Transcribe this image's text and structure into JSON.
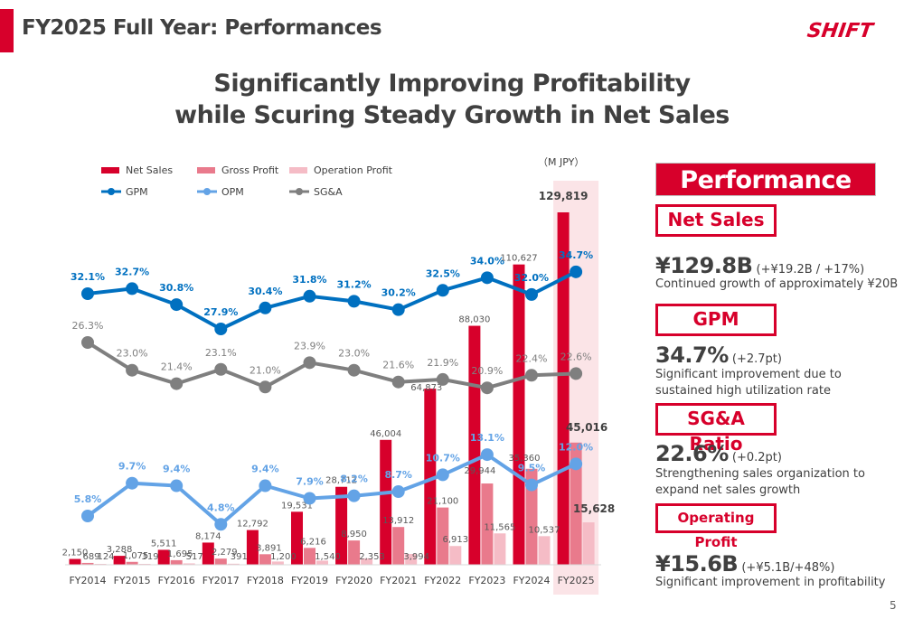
{
  "header": {
    "title": "FY2025 Full Year: Performances",
    "logo": "SHIFT",
    "accent_color": "#d7002b"
  },
  "headline": {
    "line1": "Significantly Improving Profitability",
    "line2": "while Scuring Steady Growth in Net Sales"
  },
  "chart_data": {
    "type": "bar",
    "unit_label": "（M JPY）",
    "categories": [
      "FY2014",
      "FY2015",
      "FY2016",
      "FY2017",
      "FY2018",
      "FY2019",
      "FY2020",
      "FY2021",
      "FY2022",
      "FY2023",
      "FY2024",
      "FY2025"
    ],
    "highlight_category": "FY2025",
    "legend": [
      {
        "name": "Net Sales",
        "type": "bar",
        "color": "#d7002b"
      },
      {
        "name": "Gross Profit",
        "type": "bar",
        "color": "#e97a8c"
      },
      {
        "name": "Operation Profit",
        "type": "bar",
        "color": "#f5bcc6"
      },
      {
        "name": "GPM",
        "type": "line",
        "color": "#0070c0"
      },
      {
        "name": "OPM",
        "type": "line",
        "color": "#63a3e6"
      },
      {
        "name": "SG&A",
        "type": "line",
        "color": "#7f7f7f"
      }
    ],
    "series": [
      {
        "name": "Net Sales",
        "type": "bar",
        "color": "#d7002b",
        "values": [
          2150,
          3288,
          5511,
          8174,
          12792,
          19531,
          28712,
          46004,
          64873,
          88030,
          110627,
          129819
        ],
        "labels": [
          "2,150",
          "3,288",
          "5,511",
          "8,174",
          "12,792",
          "19,531",
          "28,712",
          "46,004",
          "64,873",
          "88,030",
          "110,627",
          "129,819"
        ]
      },
      {
        "name": "Gross Profit",
        "type": "bar",
        "color": "#e97a8c",
        "values": [
          689,
          1075,
          1695,
          2279,
          3891,
          6216,
          8950,
          13912,
          21100,
          29944,
          35360,
          45016
        ],
        "labels": [
          "689",
          "1,075",
          "1,695",
          "2,279",
          "3,891",
          "6,216",
          "8,950",
          "13,912",
          "21,100",
          "29,944",
          "35,360",
          "45,016"
        ]
      },
      {
        "name": "Operation Profit",
        "type": "bar",
        "color": "#f5bcc6",
        "values": [
          124,
          319,
          517,
          391,
          1200,
          1540,
          2353,
          3994,
          6913,
          11565,
          10537,
          15628
        ],
        "labels": [
          "124",
          "319",
          "517",
          "391",
          "1,200",
          "1,540",
          "2,353",
          "3,994",
          "6,913",
          "11,565",
          "10,537",
          "15,628"
        ]
      },
      {
        "name": "GPM",
        "type": "line",
        "color": "#0070c0",
        "unit": "%",
        "values": [
          32.1,
          32.7,
          30.8,
          27.9,
          30.4,
          31.8,
          31.2,
          30.2,
          32.5,
          34.0,
          32.0,
          34.7
        ],
        "labels": [
          "32.1%",
          "32.7%",
          "30.8%",
          "27.9%",
          "30.4%",
          "31.8%",
          "31.2%",
          "30.2%",
          "32.5%",
          "34.0%",
          "32.0%",
          "34.7%"
        ]
      },
      {
        "name": "SG&A",
        "type": "line",
        "color": "#7f7f7f",
        "unit": "%",
        "values": [
          26.3,
          23.0,
          21.4,
          23.1,
          21.0,
          23.9,
          23.0,
          21.6,
          21.9,
          20.9,
          22.4,
          22.6
        ],
        "labels": [
          "26.3%",
          "23.0%",
          "21.4%",
          "23.1%",
          "21.0%",
          "23.9%",
          "23.0%",
          "21.6%",
          "21.9%",
          "20.9%",
          "22.4%",
          "22.6%"
        ]
      },
      {
        "name": "OPM",
        "type": "line",
        "color": "#63a3e6",
        "unit": "%",
        "values": [
          5.8,
          9.7,
          9.4,
          4.8,
          9.4,
          7.9,
          8.2,
          8.7,
          10.7,
          13.1,
          9.5,
          12.0
        ],
        "labels": [
          "5.8%",
          "9.7%",
          "9.4%",
          "4.8%",
          "9.4%",
          "7.9%",
          "8.2%",
          "8.7%",
          "10.7%",
          "13.1%",
          "9.5%",
          "12.0%"
        ]
      }
    ],
    "title": "",
    "xlabel": "",
    "ylabel": "",
    "grid": false,
    "legend_position": "top-left"
  },
  "panel": {
    "header": "Performance",
    "metrics": [
      {
        "tag": "Net Sales",
        "value": "¥129.8B",
        "delta": " (+¥19.2B / +17%)",
        "description": "Continued growth of approximately ¥20B"
      },
      {
        "tag": "GPM",
        "value": "34.7%",
        "delta": " (+2.7pt)",
        "description": "Significant improvement due to sustained high utilization rate"
      },
      {
        "tag": "SG&A Ratio",
        "value": "22.6%",
        "delta": " (+0.2pt)",
        "description": "Strengthening sales organization to expand net sales growth"
      },
      {
        "tag": "Operating Profit",
        "value": "¥15.6B",
        "delta": " (+¥5.1B/+48%)",
        "description": "Significant improvement in profitability"
      }
    ]
  },
  "footer": {
    "page_number": "5"
  }
}
